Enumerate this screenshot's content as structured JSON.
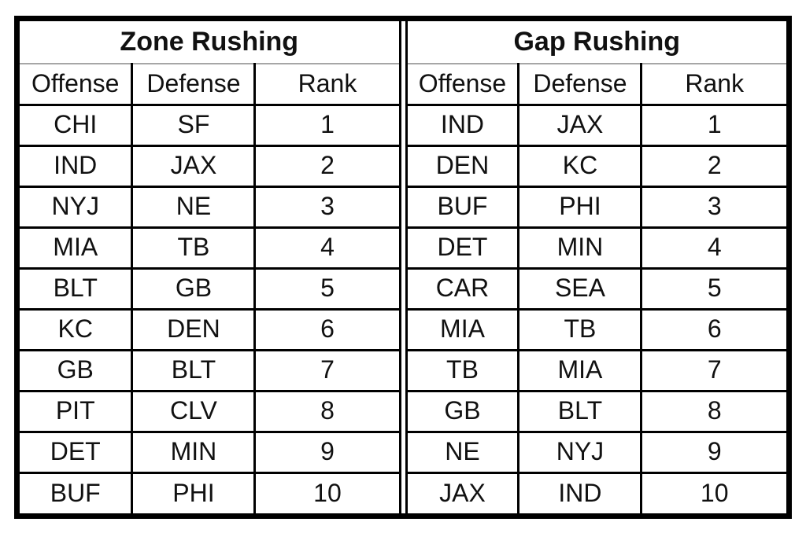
{
  "colors": {
    "border": "#000000",
    "background": "#ffffff",
    "title_divider": "#a6a6a6",
    "text": "#111111"
  },
  "chart_data": [
    {
      "type": "table",
      "title": "Zone Rushing",
      "columns": [
        "Offense",
        "Defense",
        "Rank"
      ],
      "rows": [
        {
          "offense": "CHI",
          "defense": "SF",
          "rank": 1
        },
        {
          "offense": "IND",
          "defense": "JAX",
          "rank": 2
        },
        {
          "offense": "NYJ",
          "defense": "NE",
          "rank": 3
        },
        {
          "offense": "MIA",
          "defense": "TB",
          "rank": 4
        },
        {
          "offense": "BLT",
          "defense": "GB",
          "rank": 5
        },
        {
          "offense": "KC",
          "defense": "DEN",
          "rank": 6
        },
        {
          "offense": "GB",
          "defense": "BLT",
          "rank": 7
        },
        {
          "offense": "PIT",
          "defense": "CLV",
          "rank": 8
        },
        {
          "offense": "DET",
          "defense": "MIN",
          "rank": 9
        },
        {
          "offense": "BUF",
          "defense": "PHI",
          "rank": 10
        }
      ]
    },
    {
      "type": "table",
      "title": "Gap Rushing",
      "columns": [
        "Offense",
        "Defense",
        "Rank"
      ],
      "rows": [
        {
          "offense": "IND",
          "defense": "JAX",
          "rank": 1
        },
        {
          "offense": "DEN",
          "defense": "KC",
          "rank": 2
        },
        {
          "offense": "BUF",
          "defense": "PHI",
          "rank": 3
        },
        {
          "offense": "DET",
          "defense": "MIN",
          "rank": 4
        },
        {
          "offense": "CAR",
          "defense": "SEA",
          "rank": 5
        },
        {
          "offense": "MIA",
          "defense": "TB",
          "rank": 6
        },
        {
          "offense": "TB",
          "defense": "MIA",
          "rank": 7
        },
        {
          "offense": "GB",
          "defense": "BLT",
          "rank": 8
        },
        {
          "offense": "NE",
          "defense": "NYJ",
          "rank": 9
        },
        {
          "offense": "JAX",
          "defense": "IND",
          "rank": 10
        }
      ]
    }
  ]
}
